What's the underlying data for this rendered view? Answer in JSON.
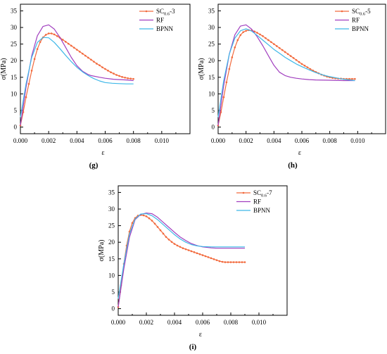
{
  "colors": {
    "SC": "#f26a3d",
    "RF": "#a13fbf",
    "BPNN": "#3fb8e8"
  },
  "chart_data": [
    {
      "type": "line",
      "panel_label": "(g)",
      "xlabel": "ε",
      "ylabel": "σ(MPa)",
      "xlim": [
        0.0,
        0.012
      ],
      "ylim": [
        -2,
        37
      ],
      "xticks": [
        "0.000",
        "0.002",
        "0.004",
        "0.006",
        "0.008",
        "0.010"
      ],
      "yticks": [
        "0",
        "5",
        "10",
        "15",
        "20",
        "25",
        "30",
        "35"
      ],
      "legend_position": "top-right",
      "series": [
        {
          "name": "SC0.6-3",
          "name_main": "SC",
          "name_sub": "0.6",
          "name_suffix": "-3",
          "color": "#f26a3d",
          "marker": true,
          "x": [
            0,
            0.0002,
            0.0004,
            0.0006,
            0.0008,
            0.001,
            0.0012,
            0.0014,
            0.0016,
            0.0018,
            0.002,
            0.0022,
            0.0024,
            0.0026,
            0.0028,
            0.003,
            0.0032,
            0.0034,
            0.0036,
            0.0038,
            0.004,
            0.0042,
            0.0044,
            0.0046,
            0.0048,
            0.005,
            0.0052,
            0.0054,
            0.0056,
            0.0058,
            0.006,
            0.0062,
            0.0064,
            0.0066,
            0.0068,
            0.007,
            0.0072,
            0.0074,
            0.0076,
            0.0078,
            0.008
          ],
          "y": [
            0.5,
            4.5,
            9.0,
            13.0,
            17.0,
            20.5,
            23.5,
            25.6,
            27.0,
            27.8,
            28.2,
            28.2,
            27.9,
            27.4,
            26.9,
            26.3,
            25.7,
            25.1,
            24.5,
            23.9,
            23.3,
            22.7,
            22.1,
            21.5,
            20.9,
            20.3,
            19.7,
            19.1,
            18.6,
            18.0,
            17.5,
            17.0,
            16.5,
            16.1,
            15.7,
            15.4,
            15.1,
            14.9,
            14.7,
            14.6,
            14.5
          ]
        },
        {
          "name": "RF",
          "color": "#a13fbf",
          "marker": false,
          "x": [
            0,
            0.0004,
            0.0008,
            0.0012,
            0.0016,
            0.002,
            0.0024,
            0.0028,
            0.0032,
            0.0036,
            0.004,
            0.0044,
            0.0048,
            0.005,
            0.0056,
            0.006,
            0.0066,
            0.007,
            0.0075,
            0.008
          ],
          "y": [
            0.5,
            12.0,
            21.5,
            27.5,
            30.3,
            30.8,
            29.5,
            27.0,
            24.0,
            21.0,
            18.5,
            16.8,
            15.8,
            15.5,
            15.0,
            14.7,
            14.4,
            14.3,
            14.2,
            14.0
          ]
        },
        {
          "name": "BPNN",
          "color": "#3fb8e8",
          "marker": false,
          "x": [
            0,
            0.0004,
            0.0008,
            0.0012,
            0.0016,
            0.002,
            0.0024,
            0.0028,
            0.0032,
            0.0036,
            0.004,
            0.0044,
            0.0048,
            0.0052,
            0.0056,
            0.006,
            0.0065,
            0.007,
            0.0075,
            0.008
          ],
          "y": [
            3.0,
            13.0,
            21.0,
            25.5,
            27.0,
            26.9,
            25.5,
            23.6,
            21.6,
            19.7,
            18.0,
            16.6,
            15.5,
            14.6,
            13.9,
            13.4,
            13.2,
            13.1,
            13.0,
            13.0
          ]
        }
      ]
    },
    {
      "type": "line",
      "panel_label": "(h)",
      "xlabel": "ε",
      "ylabel": "σ(MPa)",
      "xlim": [
        0.0,
        0.012
      ],
      "ylim": [
        -2,
        37
      ],
      "xticks": [
        "0.000",
        "0.002",
        "0.004",
        "0.006",
        "0.008",
        "0.010"
      ],
      "yticks": [
        "0",
        "5",
        "10",
        "15",
        "20",
        "25",
        "30",
        "35"
      ],
      "legend_position": "top-right",
      "series": [
        {
          "name": "SC0.6-5",
          "name_main": "SC",
          "name_sub": "0.6",
          "name_suffix": "-5",
          "color": "#f26a3d",
          "marker": true,
          "x": [
            0,
            0.0002,
            0.0004,
            0.0006,
            0.0008,
            0.001,
            0.0012,
            0.0014,
            0.0016,
            0.0018,
            0.002,
            0.0022,
            0.0024,
            0.0026,
            0.0028,
            0.003,
            0.0032,
            0.0034,
            0.0036,
            0.0038,
            0.004,
            0.0042,
            0.0044,
            0.0046,
            0.0048,
            0.005,
            0.0052,
            0.0054,
            0.0056,
            0.0058,
            0.006,
            0.0062,
            0.0064,
            0.0066,
            0.0068,
            0.007,
            0.0072,
            0.0074,
            0.0076,
            0.0078,
            0.008,
            0.0082,
            0.0084,
            0.0086,
            0.0088,
            0.009,
            0.0092,
            0.0094,
            0.0096,
            0.0098
          ],
          "y": [
            0.5,
            4.5,
            9.0,
            13.5,
            17.5,
            21.0,
            24.0,
            26.2,
            27.7,
            28.6,
            29.0,
            29.2,
            29.1,
            28.8,
            28.4,
            27.9,
            27.4,
            26.8,
            26.2,
            25.6,
            25.0,
            24.4,
            23.8,
            23.2,
            22.6,
            22.0,
            21.4,
            20.8,
            20.2,
            19.6,
            19.0,
            18.5,
            18.0,
            17.5,
            17.0,
            16.6,
            16.2,
            15.8,
            15.5,
            15.2,
            15.0,
            14.8,
            14.7,
            14.6,
            14.6,
            14.5,
            14.5,
            14.5,
            14.5,
            14.5
          ]
        },
        {
          "name": "RF",
          "color": "#a13fbf",
          "marker": false,
          "x": [
            0,
            0.0004,
            0.0008,
            0.0012,
            0.0016,
            0.002,
            0.0024,
            0.0028,
            0.0032,
            0.0036,
            0.004,
            0.0044,
            0.0048,
            0.0052,
            0.0056,
            0.006,
            0.0065,
            0.007,
            0.008,
            0.009,
            0.0098
          ],
          "y": [
            0.5,
            12.5,
            22.0,
            27.8,
            30.4,
            30.8,
            29.5,
            27.2,
            24.5,
            21.5,
            18.6,
            16.5,
            15.5,
            15.0,
            14.7,
            14.5,
            14.3,
            14.2,
            14.1,
            14.0,
            14.0
          ]
        },
        {
          "name": "BPNN",
          "color": "#3fb8e8",
          "marker": false,
          "x": [
            0,
            0.0004,
            0.0008,
            0.0012,
            0.0016,
            0.002,
            0.0024,
            0.0028,
            0.0032,
            0.0036,
            0.004,
            0.0044,
            0.0048,
            0.0052,
            0.0056,
            0.006,
            0.0066,
            0.007,
            0.0076,
            0.008,
            0.0086,
            0.009,
            0.0098
          ],
          "y": [
            3.0,
            14.0,
            22.0,
            26.8,
            29.0,
            29.6,
            28.9,
            27.6,
            26.2,
            24.8,
            23.4,
            22.2,
            21.0,
            20.0,
            19.0,
            18.2,
            17.1,
            16.4,
            15.6,
            15.2,
            14.7,
            14.4,
            14.0
          ]
        }
      ]
    },
    {
      "type": "line",
      "panel_label": "(i)",
      "xlabel": "ε",
      "ylabel": "σ(MPa)",
      "xlim": [
        0.0,
        0.012
      ],
      "ylim": [
        -2,
        37
      ],
      "xticks": [
        "0.000",
        "0.002",
        "0.004",
        "0.006",
        "0.008",
        "0.010"
      ],
      "yticks": [
        "0",
        "5",
        "10",
        "15",
        "20",
        "25",
        "30",
        "35"
      ],
      "legend_position": "top-right",
      "series": [
        {
          "name": "SC0.6-7",
          "name_main": "SC",
          "name_sub": "0.6",
          "name_suffix": "-7",
          "color": "#f26a3d",
          "marker": true,
          "x": [
            0,
            0.0002,
            0.0004,
            0.0006,
            0.0008,
            0.001,
            0.0012,
            0.0014,
            0.0016,
            0.0018,
            0.002,
            0.0022,
            0.0024,
            0.0026,
            0.0028,
            0.003,
            0.0032,
            0.0034,
            0.0036,
            0.0038,
            0.004,
            0.0042,
            0.0044,
            0.0046,
            0.0048,
            0.005,
            0.0052,
            0.0054,
            0.0056,
            0.0058,
            0.006,
            0.0062,
            0.0064,
            0.0066,
            0.0068,
            0.007,
            0.0072,
            0.0074,
            0.0076,
            0.0078,
            0.008,
            0.0082,
            0.0084,
            0.0086,
            0.0088,
            0.009
          ],
          "y": [
            0.5,
            7.0,
            13.5,
            19.0,
            23.2,
            25.8,
            27.3,
            28.0,
            28.2,
            28.1,
            27.8,
            27.2,
            26.5,
            25.6,
            24.6,
            23.6,
            22.6,
            21.6,
            20.8,
            20.1,
            19.5,
            19.0,
            18.6,
            18.2,
            17.9,
            17.6,
            17.3,
            17.0,
            16.7,
            16.4,
            16.1,
            15.8,
            15.5,
            15.2,
            14.9,
            14.6,
            14.3,
            14.1,
            14.0,
            14.0,
            14.0,
            14.0,
            14.0,
            14.0,
            14.0,
            14.0
          ]
        },
        {
          "name": "RF",
          "color": "#a13fbf",
          "marker": false,
          "x": [
            0,
            0.0004,
            0.0008,
            0.0012,
            0.0016,
            0.002,
            0.0024,
            0.0028,
            0.0032,
            0.0036,
            0.004,
            0.0044,
            0.0048,
            0.0052,
            0.0056,
            0.006,
            0.0066,
            0.007,
            0.008,
            0.009
          ],
          "y": [
            0.5,
            12.0,
            21.5,
            26.8,
            28.4,
            28.8,
            28.6,
            27.5,
            26.0,
            24.5,
            23.0,
            21.6,
            20.5,
            19.6,
            19.0,
            18.6,
            18.3,
            18.2,
            18.2,
            18.2
          ]
        },
        {
          "name": "BPNN",
          "color": "#3fb8e8",
          "marker": false,
          "x": [
            0,
            0.0004,
            0.0008,
            0.0012,
            0.0016,
            0.002,
            0.0024,
            0.0028,
            0.0032,
            0.0036,
            0.004,
            0.0044,
            0.0048,
            0.0052,
            0.0056,
            0.006,
            0.0066,
            0.007,
            0.008,
            0.009
          ],
          "y": [
            3.0,
            13.5,
            22.5,
            27.0,
            28.5,
            28.6,
            28.0,
            26.8,
            25.3,
            23.8,
            22.3,
            21.0,
            20.0,
            19.3,
            18.9,
            18.7,
            18.6,
            18.6,
            18.6,
            18.6
          ]
        }
      ]
    }
  ]
}
